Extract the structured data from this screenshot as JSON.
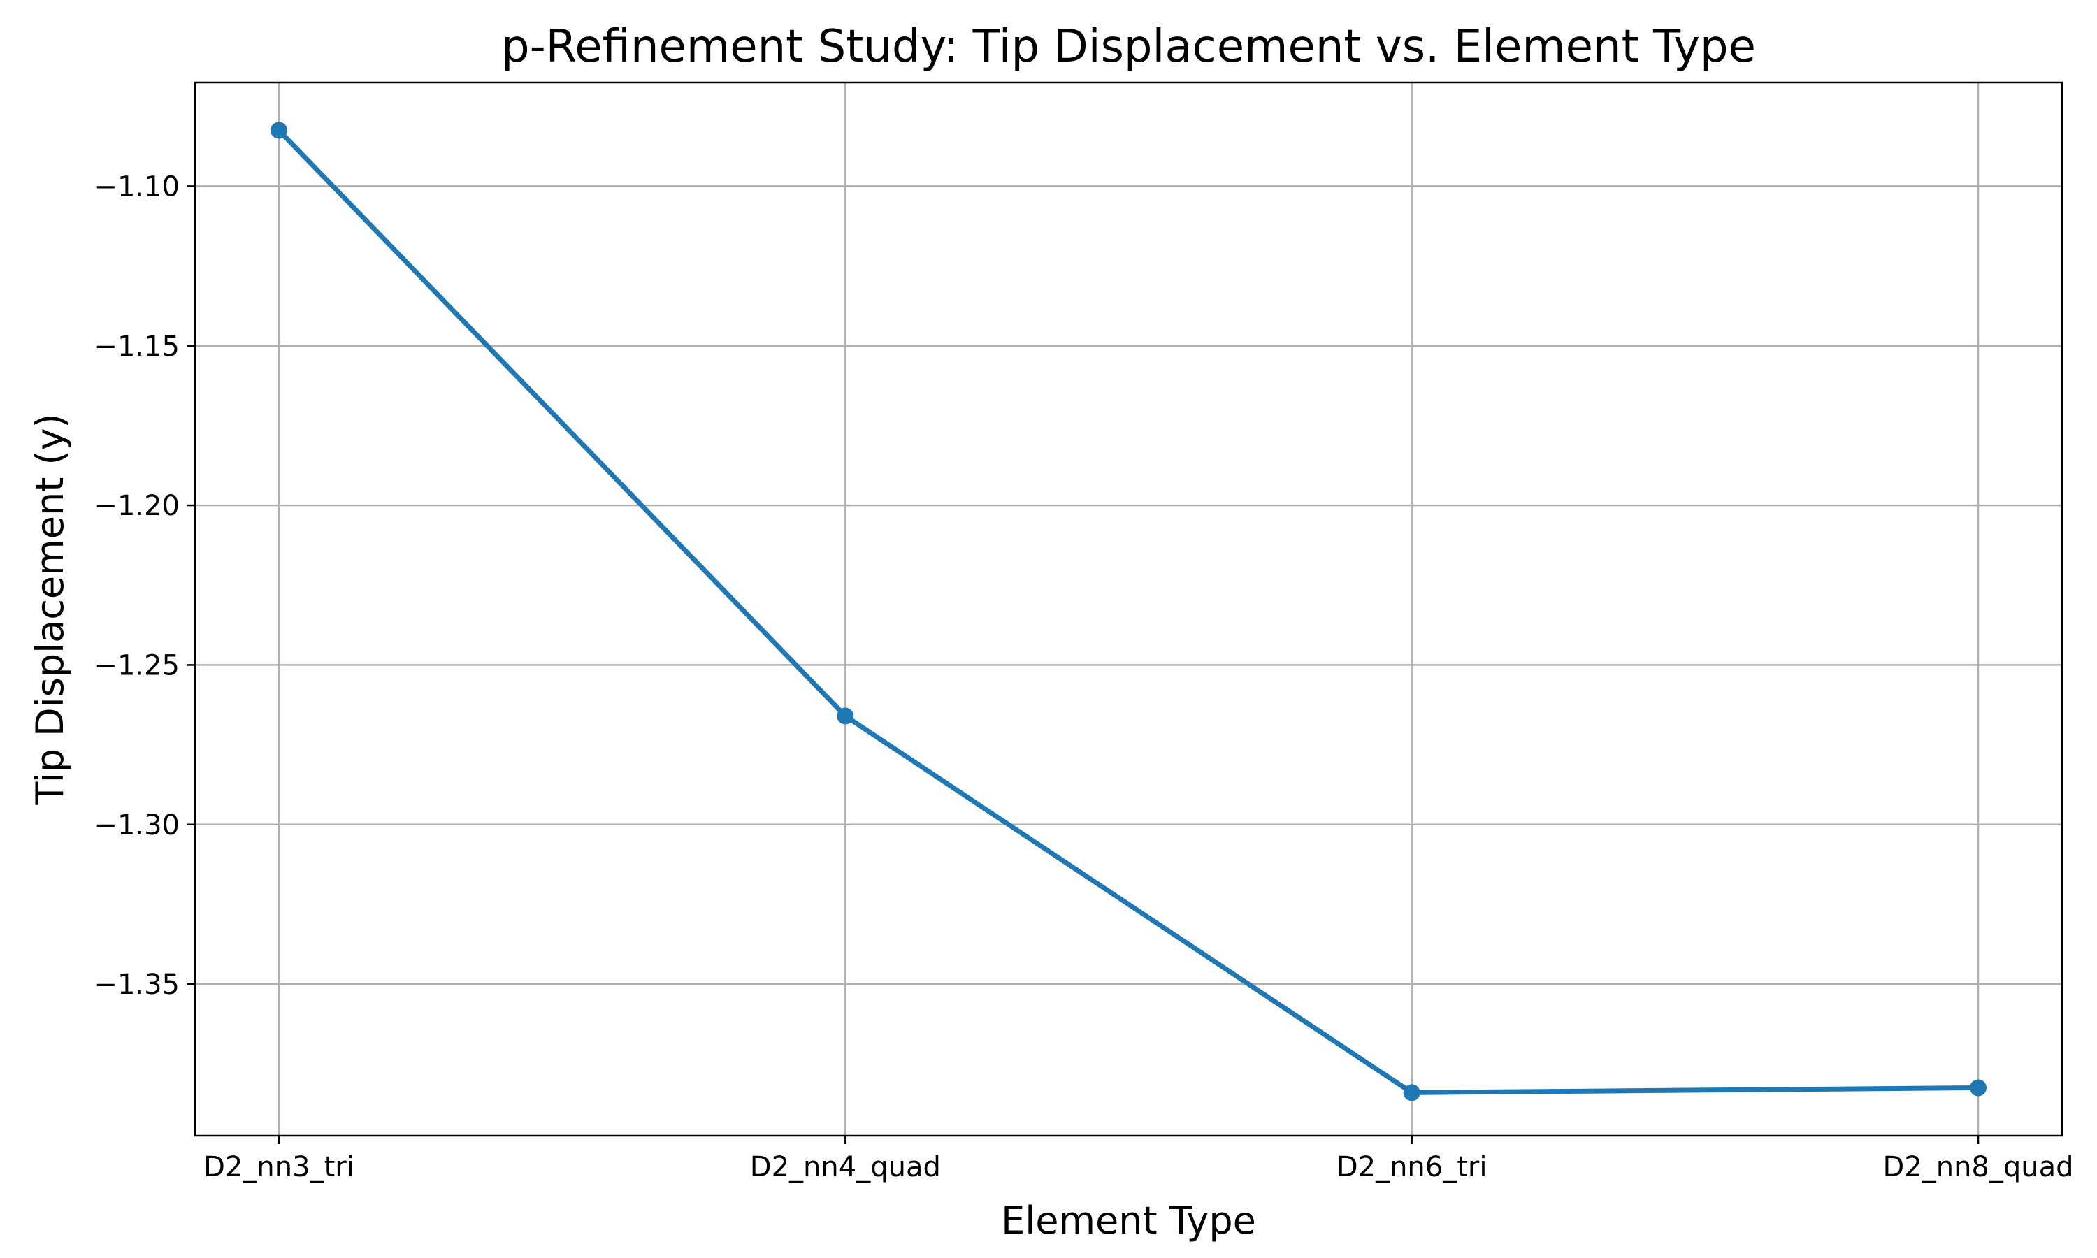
{
  "chart_data": {
    "type": "line",
    "title": "p-Refinement Study: Tip Displacement vs. Element Type",
    "xlabel": "Element Type",
    "ylabel": "Tip Displacement (y)",
    "categories": [
      "D2_nn3_tri",
      "D2_nn4_quad",
      "D2_nn6_tri",
      "D2_nn8_quad"
    ],
    "series": [
      {
        "values": [
          -1.0825,
          -1.266,
          -1.384,
          -1.3825
        ]
      }
    ],
    "yticks": [
      -1.1,
      -1.15,
      -1.2,
      -1.25,
      -1.3,
      -1.35
    ],
    "ytick_labels": [
      "−1.10",
      "−1.15",
      "−1.20",
      "−1.25",
      "−1.30",
      "−1.35"
    ],
    "ylim": [
      -1.3975,
      -1.0675
    ],
    "grid": true,
    "line_color": "#1f77b4",
    "marker": "circle"
  }
}
